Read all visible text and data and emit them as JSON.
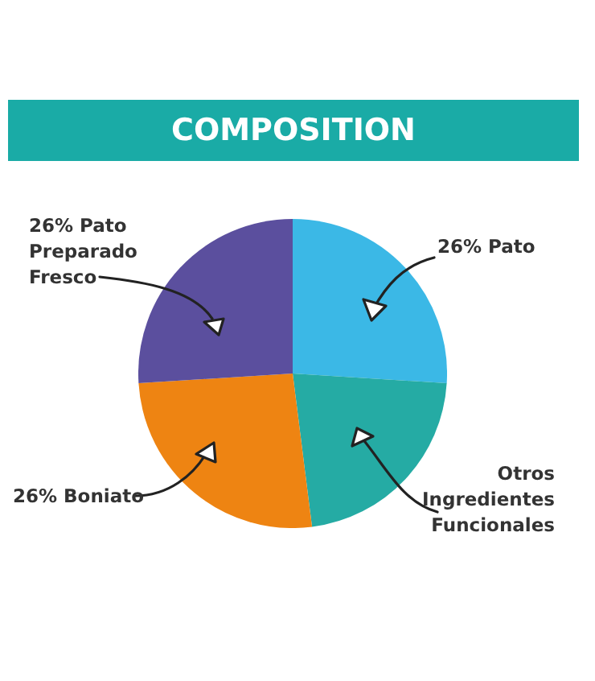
{
  "chart_data": {
    "type": "pie",
    "title": "COMPOSITION",
    "categories": [
      "26% Pato",
      "Otros Ingredientes Funcionales",
      "26% Boniato",
      "26% Pato Preparado Fresco"
    ],
    "values": [
      26,
      22,
      26,
      26
    ],
    "colors": [
      "#3bb8e6",
      "#25aba4",
      "#ee8412",
      "#5b4f9e"
    ],
    "legend": false
  }
}
